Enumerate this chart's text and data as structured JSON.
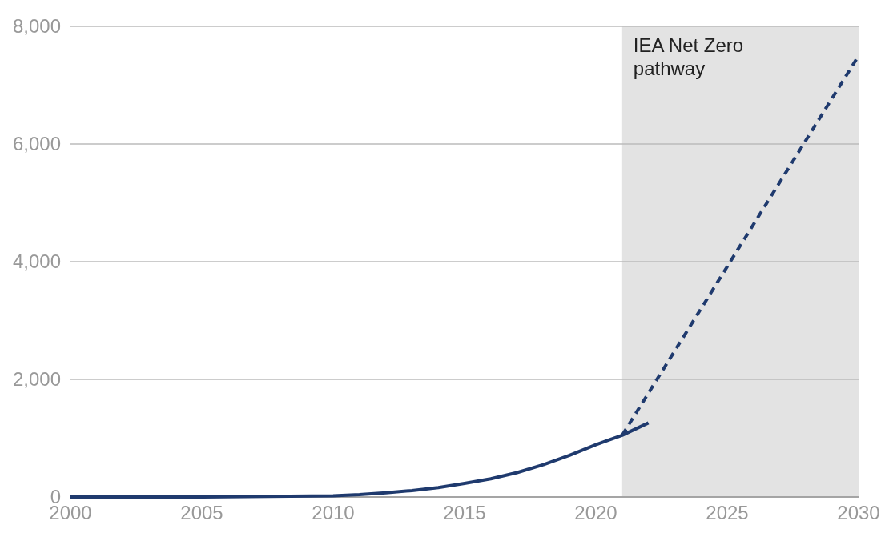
{
  "chart_data": {
    "type": "line",
    "series": [
      {
        "color": "#1f3a6e",
        "line_style": "solid",
        "x": [
          2000,
          2005,
          2010,
          2011,
          2012,
          2013,
          2014,
          2015,
          2016,
          2017,
          2018,
          2019,
          2020,
          2021,
          2022
        ],
        "values": [
          0,
          0,
          20,
          40,
          70,
          110,
          160,
          230,
          310,
          415,
          550,
          710,
          890,
          1050,
          1260
        ]
      },
      {
        "color": "#1f3a6e",
        "line_style": "dashed",
        "x": [
          2021,
          2030
        ],
        "values": [
          1050,
          7500
        ]
      }
    ],
    "xlim": [
      2000,
      2030
    ],
    "xticks": [
      2000,
      2005,
      2010,
      2015,
      2020,
      2025,
      2030
    ],
    "ylim": [
      0,
      8000
    ],
    "yticks": [
      {
        "value": 0,
        "label": "0"
      },
      {
        "value": 2000,
        "label": "2,000"
      },
      {
        "value": 4000,
        "label": "4,000"
      },
      {
        "value": 6000,
        "label": "6,000"
      },
      {
        "value": 8000,
        "label": "8,000"
      }
    ],
    "grid": "y",
    "bands": [
      {
        "axis": "x",
        "from": 2021,
        "to": 2030,
        "label": "IEA Net Zero pathway",
        "color": "#e3e3e3"
      }
    ]
  }
}
